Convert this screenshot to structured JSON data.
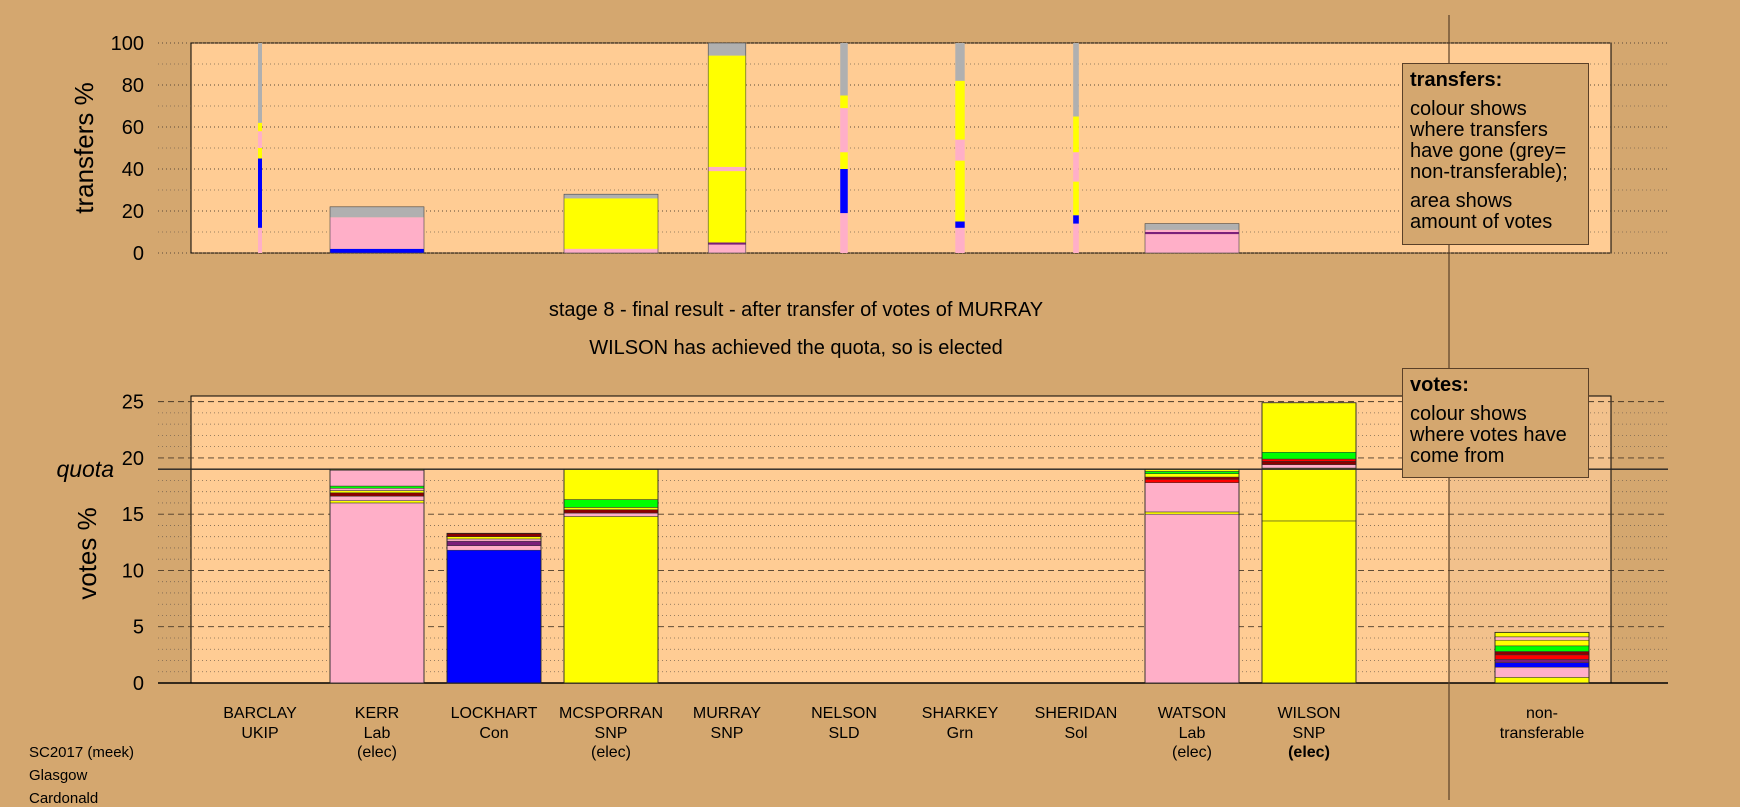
{
  "colors": {
    "UKIP": "#7a1f7a",
    "Lab": "#ffafc8",
    "Con": "#0000ff",
    "SNP": "#ffff00",
    "SLD": "#ff0000",
    "Grn": "#00ff00",
    "Sol": "#8b0000",
    "nontransferable": "#b0b0b0",
    "background": "#d4a76f",
    "panel": "#ffcc94"
  },
  "legend_transfers": {
    "title": "transfers:",
    "p1": "colour shows where transfers have gone (grey= non-transferable);",
    "p2": "area shows amount of votes"
  },
  "legend_votes": {
    "title": "votes:",
    "p1": "colour shows where votes have come from"
  },
  "headline1": "stage 8 - final result - after transfer of votes of MURRAY",
  "headline2": "WILSON has achieved the quota, so is elected",
  "footer": [
    "SC2017 (meek)",
    "Glasgow",
    "Cardonald"
  ],
  "chart_data": [
    {
      "type": "bar",
      "title": "",
      "ylabel": "transfers %",
      "ylim": [
        0,
        100
      ],
      "yticks": [
        0,
        20,
        40,
        60,
        80,
        100
      ],
      "grid": true,
      "columns": [
        {
          "name": "BARCLAY",
          "width_share": 0.02,
          "segments": [
            {
              "party": "Lab",
              "from": 0,
              "to": 12
            },
            {
              "party": "Con",
              "from": 12,
              "to": 45
            },
            {
              "party": "SNP",
              "from": 45,
              "to": 50
            },
            {
              "party": "Lab",
              "from": 50,
              "to": 58
            },
            {
              "party": "SNP",
              "from": 58,
              "to": 62
            },
            {
              "party": "nontransferable",
              "from": 62,
              "to": 100
            }
          ]
        },
        {
          "name": "KERR",
          "width_share": 1,
          "segments": [
            {
              "party": "Con",
              "from": 0,
              "to": 2
            },
            {
              "party": "Lab",
              "from": 2,
              "to": 17
            },
            {
              "party": "nontransferable",
              "from": 17,
              "to": 22
            }
          ]
        },
        {
          "name": "LOCKHART",
          "width_share": 1,
          "segments": []
        },
        {
          "name": "MCSPORRAN",
          "width_share": 1,
          "segments": [
            {
              "party": "Lab",
              "from": 0,
              "to": 2
            },
            {
              "party": "SNP",
              "from": 2,
              "to": 26
            },
            {
              "party": "nontransferable",
              "from": 26,
              "to": 28
            }
          ]
        },
        {
          "name": "MURRAY",
          "width_share": 0.4,
          "segments": [
            {
              "party": "Lab",
              "from": 0,
              "to": 4
            },
            {
              "party": "UKIP",
              "from": 4,
              "to": 5
            },
            {
              "party": "SNP",
              "from": 5,
              "to": 39
            },
            {
              "party": "Lab",
              "from": 39,
              "to": 41
            },
            {
              "party": "SNP",
              "from": 41,
              "to": 94
            },
            {
              "party": "nontransferable",
              "from": 94,
              "to": 100
            }
          ]
        },
        {
          "name": "NELSON",
          "width_share": 0.08,
          "segments": [
            {
              "party": "Lab",
              "from": 0,
              "to": 19
            },
            {
              "party": "Con",
              "from": 19,
              "to": 40
            },
            {
              "party": "SNP",
              "from": 40,
              "to": 48
            },
            {
              "party": "Lab",
              "from": 48,
              "to": 69
            },
            {
              "party": "SNP",
              "from": 69,
              "to": 75
            },
            {
              "party": "nontransferable",
              "from": 75,
              "to": 100
            }
          ]
        },
        {
          "name": "SHARKEY",
          "width_share": 0.1,
          "segments": [
            {
              "party": "Lab",
              "from": 0,
              "to": 12
            },
            {
              "party": "Con",
              "from": 12,
              "to": 15
            },
            {
              "party": "SNP",
              "from": 15,
              "to": 44
            },
            {
              "party": "Lab",
              "from": 44,
              "to": 54
            },
            {
              "party": "SNP",
              "from": 54,
              "to": 82
            },
            {
              "party": "nontransferable",
              "from": 82,
              "to": 100
            }
          ]
        },
        {
          "name": "SHERIDAN",
          "width_share": 0.06,
          "segments": [
            {
              "party": "Lab",
              "from": 0,
              "to": 14
            },
            {
              "party": "Con",
              "from": 14,
              "to": 18
            },
            {
              "party": "SNP",
              "from": 18,
              "to": 34
            },
            {
              "party": "Lab",
              "from": 34,
              "to": 48
            },
            {
              "party": "SNP",
              "from": 48,
              "to": 65
            },
            {
              "party": "nontransferable",
              "from": 65,
              "to": 100
            }
          ]
        },
        {
          "name": "WATSON",
          "width_share": 1,
          "segments": [
            {
              "party": "Lab",
              "from": 0,
              "to": 9
            },
            {
              "party": "UKIP",
              "from": 9,
              "to": 10
            },
            {
              "party": "Lab",
              "from": 10,
              "to": 11
            },
            {
              "party": "nontransferable",
              "from": 11,
              "to": 14
            }
          ]
        },
        {
          "name": "WILSON",
          "width_share": 1,
          "segments": []
        }
      ]
    },
    {
      "type": "bar",
      "title": "",
      "ylabel": "votes %",
      "ylim": [
        0,
        25.5
      ],
      "yticks": [
        0,
        5,
        10,
        15,
        20,
        25
      ],
      "grid": true,
      "quota": 19,
      "quota_label": "quota",
      "candidates": [
        {
          "name": "BARCLAY",
          "party": "UKIP",
          "status": "",
          "segments": []
        },
        {
          "name": "KERR",
          "party": "Lab",
          "status": "(elec)",
          "segments": [
            {
              "party": "Lab",
              "from": 0,
              "to": 16
            },
            {
              "party": "SNP",
              "from": 16,
              "to": 16.2
            },
            {
              "party": "Lab",
              "from": 16.2,
              "to": 16.6
            },
            {
              "party": "Sol",
              "from": 16.6,
              "to": 16.9
            },
            {
              "party": "SNP",
              "from": 16.9,
              "to": 17.1
            },
            {
              "party": "Lab",
              "from": 17.1,
              "to": 17.3
            },
            {
              "party": "Grn",
              "from": 17.3,
              "to": 17.5
            },
            {
              "party": "Lab",
              "from": 17.5,
              "to": 18.9
            },
            {
              "party": "SNP",
              "from": 18.9,
              "to": 19
            }
          ]
        },
        {
          "name": "LOCKHART",
          "party": "Con",
          "status": "",
          "segments": [
            {
              "party": "Con",
              "from": 0,
              "to": 11.8
            },
            {
              "party": "Lab",
              "from": 11.8,
              "to": 12.2
            },
            {
              "party": "UKIP",
              "from": 12.2,
              "to": 12.6
            },
            {
              "party": "Lab",
              "from": 12.6,
              "to": 12.8
            },
            {
              "party": "SNP",
              "from": 12.8,
              "to": 13
            },
            {
              "party": "Sol",
              "from": 13,
              "to": 13.3
            }
          ]
        },
        {
          "name": "MCSPORRAN",
          "party": "SNP",
          "status": "(elec)",
          "segments": [
            {
              "party": "SNP",
              "from": 0,
              "to": 14.8
            },
            {
              "party": "Lab",
              "from": 14.8,
              "to": 15.1
            },
            {
              "party": "Sol",
              "from": 15.1,
              "to": 15.4
            },
            {
              "party": "SNP",
              "from": 15.4,
              "to": 15.6
            },
            {
              "party": "Grn",
              "from": 15.6,
              "to": 16.3
            },
            {
              "party": "SNP",
              "from": 16.3,
              "to": 19
            }
          ]
        },
        {
          "name": "MURRAY",
          "party": "SNP",
          "status": "",
          "segments": []
        },
        {
          "name": "NELSON",
          "party": "SLD",
          "status": "",
          "segments": []
        },
        {
          "name": "SHARKEY",
          "party": "Grn",
          "status": "",
          "segments": []
        },
        {
          "name": "SHERIDAN",
          "party": "Sol",
          "status": "",
          "segments": []
        },
        {
          "name": "WATSON",
          "party": "Lab",
          "status": "(elec)",
          "segments": [
            {
              "party": "Lab",
              "from": 0,
              "to": 15
            },
            {
              "party": "SNP",
              "from": 15,
              "to": 15.2
            },
            {
              "party": "Lab",
              "from": 15.2,
              "to": 17.8
            },
            {
              "party": "SLD",
              "from": 17.8,
              "to": 18.1
            },
            {
              "party": "Sol",
              "from": 18.1,
              "to": 18.3
            },
            {
              "party": "SNP",
              "from": 18.3,
              "to": 18.6
            },
            {
              "party": "Grn",
              "from": 18.6,
              "to": 18.8
            },
            {
              "party": "SNP",
              "from": 18.8,
              "to": 19
            }
          ]
        },
        {
          "name": "WILSON",
          "party": "SNP",
          "status": "(elec)",
          "segments": [
            {
              "party": "SNP",
              "from": 0,
              "to": 14.4
            },
            {
              "party": "SNP",
              "from": 14.4,
              "to": 19.1
            },
            {
              "party": "Lab",
              "from": 19.1,
              "to": 19.4
            },
            {
              "party": "Sol",
              "from": 19.4,
              "to": 19.7
            },
            {
              "party": "SLD",
              "from": 19.7,
              "to": 19.9
            },
            {
              "party": "Grn",
              "from": 19.9,
              "to": 20.5
            },
            {
              "party": "SNP",
              "from": 20.5,
              "to": 24.9
            }
          ]
        },
        {
          "name": "non-\ntransferable",
          "party": "",
          "status": "",
          "segments": [
            {
              "party": "SNP",
              "from": 0,
              "to": 0.5
            },
            {
              "party": "Lab",
              "from": 0.5,
              "to": 1.4
            },
            {
              "party": "Con",
              "from": 1.4,
              "to": 1.8
            },
            {
              "party": "UKIP",
              "from": 1.8,
              "to": 2.1
            },
            {
              "party": "SLD",
              "from": 2.1,
              "to": 2.5
            },
            {
              "party": "Sol",
              "from": 2.5,
              "to": 2.8
            },
            {
              "party": "Grn",
              "from": 2.8,
              "to": 3.3
            },
            {
              "party": "SNP",
              "from": 3.3,
              "to": 3.8
            },
            {
              "party": "Lab",
              "from": 3.8,
              "to": 4.1
            },
            {
              "party": "SNP",
              "from": 4.1,
              "to": 4.5
            }
          ]
        }
      ]
    }
  ]
}
